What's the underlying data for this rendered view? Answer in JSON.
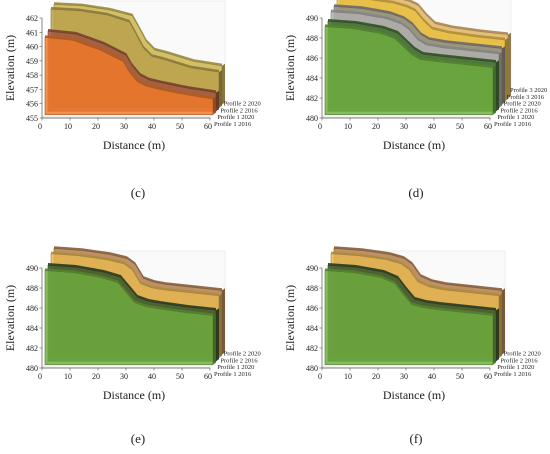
{
  "chart_data": [
    {
      "panel": "(c)",
      "type": "area",
      "style": "3d-stacked-profiles",
      "xlabel": "Distance (m)",
      "ylabel": "Elevation (m)",
      "xlim": [
        0,
        60
      ],
      "ylim": [
        455,
        462
      ],
      "xticks": [
        "0",
        "10",
        "20",
        "30",
        "40",
        "50",
        "60"
      ],
      "yticks": [
        "455",
        "456",
        "457",
        "458",
        "459",
        "460",
        "461",
        "462"
      ],
      "grid": false,
      "x": [
        0,
        10,
        20,
        28,
        30,
        33,
        36,
        40,
        50,
        60
      ],
      "series": [
        {
          "name": "Profile 2 2020",
          "color": "#c9b24a",
          "values": [
            462.0,
            461.9,
            461.6,
            461.2,
            460.5,
            459.4,
            458.8,
            458.6,
            458.0,
            457.7
          ]
        },
        {
          "name": "Profile 2 2016",
          "color": "#b9a04a",
          "values": [
            461.9,
            461.8,
            461.5,
            461.0,
            460.3,
            459.2,
            458.6,
            458.4,
            457.8,
            457.5
          ]
        },
        {
          "name": "Profile 1 2020",
          "color": "#a0523a",
          "values": [
            460.6,
            460.4,
            459.7,
            458.9,
            458.2,
            457.5,
            457.2,
            457.0,
            456.6,
            456.3
          ]
        },
        {
          "name": "Profile 1 2016",
          "color": "#f07a2a",
          "values": [
            460.4,
            460.2,
            459.5,
            458.7,
            458.0,
            457.3,
            457.0,
            456.8,
            456.4,
            456.1
          ]
        }
      ]
    },
    {
      "panel": "(d)",
      "type": "area",
      "style": "3d-stacked-profiles",
      "xlabel": "Distance (m)",
      "ylabel": "Elevation (m)",
      "xlim": [
        0,
        60
      ],
      "ylim": [
        480,
        490
      ],
      "xticks": [
        "0",
        "10",
        "20",
        "30",
        "40",
        "50",
        "60"
      ],
      "yticks": [
        "480",
        "482",
        "484",
        "486",
        "488",
        "490"
      ],
      "grid": false,
      "x": [
        0,
        10,
        20,
        25,
        28,
        31,
        34,
        40,
        50,
        60
      ],
      "series": [
        {
          "name": "Profile 3 2020",
          "color": "#e0b060",
          "values": [
            490.6,
            490.4,
            490.0,
            489.6,
            489.2,
            488.2,
            487.4,
            487.0,
            486.6,
            486.3
          ]
        },
        {
          "name": "Profile 3 2016",
          "color": "#e8c040",
          "values": [
            490.4,
            490.2,
            489.8,
            489.4,
            489.0,
            488.0,
            487.2,
            486.8,
            486.4,
            486.1
          ]
        },
        {
          "name": "Profile 2 2020",
          "color": "#8a8a8a",
          "values": [
            489.8,
            489.6,
            489.1,
            488.6,
            488.0,
            487.0,
            486.5,
            486.2,
            485.9,
            485.6
          ]
        },
        {
          "name": "Profile 2 2016",
          "color": "#b0b0b0",
          "values": [
            489.6,
            489.4,
            488.9,
            488.4,
            487.8,
            486.8,
            486.3,
            486.0,
            485.7,
            485.4
          ]
        },
        {
          "name": "Profile 1 2020",
          "color": "#3d6b2a",
          "values": [
            489.0,
            488.8,
            488.3,
            487.8,
            487.0,
            486.2,
            485.7,
            485.5,
            485.2,
            484.9
          ]
        },
        {
          "name": "Profile 1 2016",
          "color": "#6fae3e",
          "values": [
            488.8,
            488.6,
            488.1,
            487.6,
            486.8,
            486.0,
            485.5,
            485.3,
            485.0,
            484.7
          ]
        }
      ]
    },
    {
      "panel": "(e)",
      "type": "area",
      "style": "3d-stacked-profiles",
      "xlabel": "Distance (m)",
      "ylabel": "Elevation (m)",
      "xlim": [
        0,
        60
      ],
      "ylim": [
        480,
        490
      ],
      "xticks": [
        "0",
        "10",
        "20",
        "30",
        "40",
        "50",
        "60"
      ],
      "yticks": [
        "480",
        "482",
        "484",
        "486",
        "488",
        "490"
      ],
      "grid": false,
      "x": [
        0,
        10,
        20,
        26,
        29,
        32,
        36,
        40,
        50,
        60
      ],
      "series": [
        {
          "name": "Profile 2 2020",
          "color": "#b07a45",
          "values": [
            490.6,
            490.4,
            490.0,
            489.6,
            489.0,
            487.6,
            487.2,
            487.0,
            486.7,
            486.4
          ]
        },
        {
          "name": "Profile 2 2016",
          "color": "#e8b850",
          "values": [
            490.4,
            490.2,
            489.8,
            489.4,
            488.8,
            487.4,
            487.0,
            486.8,
            486.5,
            486.2
          ]
        },
        {
          "name": "Profile 1 2020",
          "color": "#2f4f2a",
          "values": [
            489.6,
            489.4,
            488.9,
            488.4,
            487.4,
            486.4,
            486.0,
            485.8,
            485.4,
            485.1
          ]
        },
        {
          "name": "Profile 1 2016",
          "color": "#6fae3e",
          "values": [
            489.4,
            489.2,
            488.7,
            488.2,
            487.2,
            486.2,
            485.8,
            485.6,
            485.2,
            484.9
          ]
        }
      ]
    },
    {
      "panel": "(f)",
      "type": "area",
      "style": "3d-stacked-profiles",
      "xlabel": "Distance (m)",
      "ylabel": "Elevation (m)",
      "xlim": [
        0,
        60
      ],
      "ylim": [
        480,
        490
      ],
      "xticks": [
        "0",
        "10",
        "20",
        "30",
        "40",
        "50",
        "60"
      ],
      "yticks": [
        "480",
        "482",
        "484",
        "486",
        "488",
        "490"
      ],
      "grid": false,
      "x": [
        0,
        10,
        20,
        25,
        28,
        31,
        35,
        40,
        50,
        60
      ],
      "series": [
        {
          "name": "Profile 2 2020",
          "color": "#b07a45",
          "values": [
            490.6,
            490.4,
            490.0,
            489.6,
            489.0,
            487.8,
            487.3,
            487.0,
            486.7,
            486.4
          ]
        },
        {
          "name": "Profile 2 2016",
          "color": "#e8b850",
          "values": [
            490.4,
            490.2,
            489.8,
            489.4,
            488.8,
            487.6,
            487.1,
            486.8,
            486.5,
            486.2
          ]
        },
        {
          "name": "Profile 1 2020",
          "color": "#2f4f2a",
          "values": [
            489.6,
            489.4,
            488.9,
            488.3,
            487.2,
            486.2,
            485.9,
            485.7,
            485.4,
            485.1
          ]
        },
        {
          "name": "Profile 1 2016",
          "color": "#6fae3e",
          "values": [
            489.4,
            489.2,
            488.7,
            488.1,
            487.0,
            486.0,
            485.7,
            485.5,
            485.2,
            484.9
          ]
        }
      ]
    }
  ]
}
